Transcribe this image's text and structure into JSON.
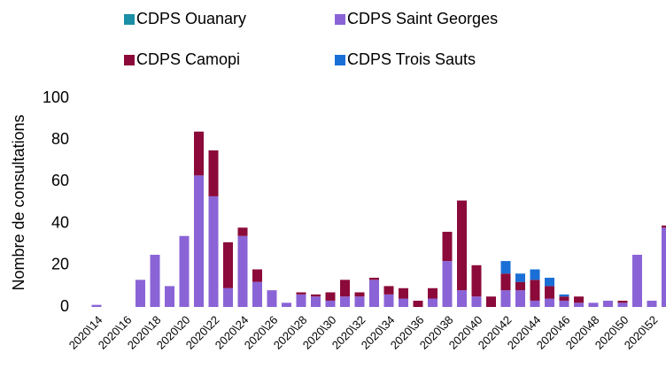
{
  "chart_data": {
    "type": "stacked-bar",
    "y_label": "Nombre de consultations",
    "categories": [
      "2020\\14",
      null,
      "2020\\16",
      null,
      "2020\\18",
      null,
      "2020\\20",
      null,
      "2020\\22",
      null,
      "2020\\24",
      null,
      "2020\\26",
      null,
      "2020\\28",
      null,
      "2020\\30",
      null,
      "2020\\32",
      null,
      "2020\\34",
      null,
      "2020\\36",
      null,
      "2020\\38",
      null,
      "2020\\40",
      null,
      "2020\\42",
      null,
      "2020\\44",
      null,
      "2020\\46",
      null,
      "2020\\48",
      null,
      "2020\\50",
      null,
      "2020\\52",
      null
    ],
    "series": [
      {
        "name": "CDPS Ouanary",
        "color": "#1b8fa6",
        "values": [
          0,
          0,
          0,
          0,
          0,
          0,
          0,
          0,
          0,
          0,
          0,
          0,
          0,
          0,
          0,
          0,
          0,
          0,
          0,
          0,
          0,
          0,
          0,
          0,
          0,
          0,
          0,
          0,
          0,
          0,
          0,
          0,
          0,
          0,
          0,
          0,
          0,
          0,
          0,
          0
        ]
      },
      {
        "name": "CDPS Saint Georges",
        "color": "#8a64d6",
        "values": [
          1,
          0,
          0,
          13,
          25,
          10,
          34,
          63,
          53,
          9,
          34,
          12,
          8,
          2,
          6,
          5,
          3,
          5,
          5,
          13,
          6,
          4,
          0,
          4,
          22,
          8,
          5,
          0,
          8,
          8,
          3,
          4,
          3,
          2,
          2,
          3,
          2,
          25,
          3,
          38
        ]
      },
      {
        "name": "CDPS Camopi",
        "color": "#8b0a3a",
        "values": [
          0,
          0,
          0,
          0,
          0,
          0,
          0,
          21,
          22,
          22,
          4,
          6,
          0,
          0,
          1,
          1,
          4,
          8,
          2,
          1,
          4,
          5,
          3,
          5,
          14,
          43,
          15,
          5,
          8,
          4,
          10,
          6,
          2,
          3,
          0,
          0,
          1,
          0,
          0,
          1
        ]
      },
      {
        "name": "CDPS Trois Sauts",
        "color": "#1a6fd6",
        "values": [
          0,
          0,
          0,
          0,
          0,
          0,
          0,
          0,
          0,
          0,
          0,
          0,
          0,
          0,
          0,
          0,
          0,
          0,
          0,
          0,
          0,
          0,
          0,
          0,
          0,
          0,
          0,
          0,
          6,
          4,
          5,
          4,
          1,
          0,
          0,
          0,
          0,
          0,
          0,
          0
        ]
      }
    ],
    "ylim": [
      0,
      100
    ],
    "yticks": [
      0,
      20,
      40,
      60,
      80,
      100
    ],
    "grid": false
  }
}
